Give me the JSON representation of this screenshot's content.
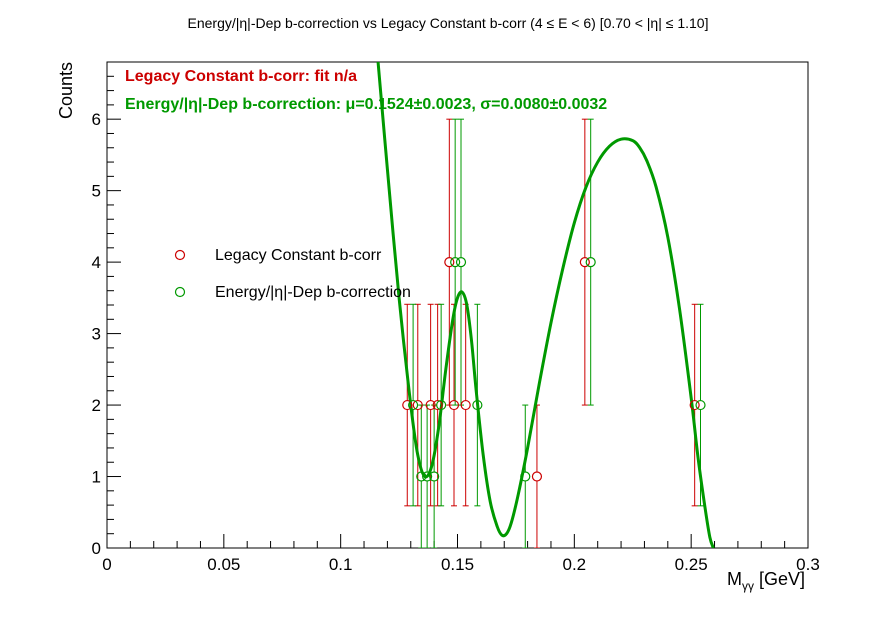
{
  "chart_data": {
    "type": "scatter",
    "title": "Energy/|η|-Dep b-correction vs Legacy Constant b-corr   (4 ≤ E < 6)   [0.70 < |η| ≤ 1.10]",
    "xlabel": "M",
    "xlabel_sub": "γγ",
    "xlabel_unit": " [GeV]",
    "ylabel": "Counts",
    "xlim": [
      0,
      0.3
    ],
    "ylim": [
      0,
      6.8
    ],
    "x_ticks": [
      "0",
      "0.05",
      "0.1",
      "0.15",
      "0.2",
      "0.25",
      "0.3"
    ],
    "y_ticks": [
      "0",
      "1",
      "2",
      "3",
      "4",
      "5",
      "6"
    ],
    "grid": false,
    "legend_position": "middle-left",
    "series": [
      {
        "name": "Legacy Constant b-corr",
        "color": "#cc0000",
        "marker": "open-circle",
        "points": [
          {
            "x": 0.1285,
            "y": 2,
            "err": 1.41
          },
          {
            "x": 0.133,
            "y": 2,
            "err": 1.41
          },
          {
            "x": 0.1385,
            "y": 2,
            "err": 1.41
          },
          {
            "x": 0.1415,
            "y": 2,
            "err": 1.41
          },
          {
            "x": 0.1465,
            "y": 4,
            "err": 2.0
          },
          {
            "x": 0.1485,
            "y": 2,
            "err": 1.41
          },
          {
            "x": 0.1535,
            "y": 2,
            "err": 1.41
          },
          {
            "x": 0.184,
            "y": 1,
            "err": 1.0
          },
          {
            "x": 0.2045,
            "y": 4,
            "err": 2.0
          },
          {
            "x": 0.2515,
            "y": 2,
            "err": 1.41
          }
        ]
      },
      {
        "name": "Energy/|η|-Dep b-correction",
        "color": "#009900",
        "marker": "open-circle",
        "points": [
          {
            "x": 0.131,
            "y": 2,
            "err": 1.41
          },
          {
            "x": 0.1345,
            "y": 1,
            "err": 1.0
          },
          {
            "x": 0.137,
            "y": 1,
            "err": 1.0
          },
          {
            "x": 0.14,
            "y": 1,
            "err": 1.0
          },
          {
            "x": 0.143,
            "y": 2,
            "err": 1.41
          },
          {
            "x": 0.149,
            "y": 4,
            "err": 2.0
          },
          {
            "x": 0.1515,
            "y": 4,
            "err": 2.0
          },
          {
            "x": 0.1585,
            "y": 2,
            "err": 1.41
          },
          {
            "x": 0.179,
            "y": 1,
            "err": 1.0
          },
          {
            "x": 0.207,
            "y": 4,
            "err": 2.0
          },
          {
            "x": 0.254,
            "y": 2,
            "err": 1.41
          }
        ]
      }
    ],
    "fit_curve": {
      "color": "#009900",
      "x": [
        0.116,
        0.12,
        0.125,
        0.13,
        0.133,
        0.136,
        0.139,
        0.142,
        0.145,
        0.148,
        0.15,
        0.152,
        0.154,
        0.156,
        0.158,
        0.161,
        0.164,
        0.167,
        0.169,
        0.171,
        0.173,
        0.176,
        0.18,
        0.185,
        0.19,
        0.195,
        0.2,
        0.205,
        0.21,
        0.215,
        0.22,
        0.225,
        0.228,
        0.231,
        0.235,
        0.24,
        0.245,
        0.25,
        0.253,
        0.256,
        0.258,
        0.2595
      ],
      "y": [
        6.8,
        5.3,
        3.5,
        2.0,
        1.3,
        1.0,
        1.15,
        1.7,
        2.5,
        3.2,
        3.5,
        3.58,
        3.4,
        2.9,
        2.2,
        1.3,
        0.65,
        0.3,
        0.18,
        0.2,
        0.35,
        0.75,
        1.4,
        2.3,
        3.15,
        3.9,
        4.55,
        5.05,
        5.4,
        5.62,
        5.72,
        5.7,
        5.6,
        5.42,
        5.05,
        4.35,
        3.35,
        2.1,
        1.25,
        0.55,
        0.15,
        0.0
      ]
    },
    "annotations": [
      {
        "text": "Legacy Constant b-corr:  fit n/a",
        "color": "#cc0000"
      },
      {
        "text": "Energy/|η|-Dep b-correction: μ=0.1524±0.0023,  σ=0.0080±0.0032",
        "color": "#009900"
      }
    ]
  }
}
